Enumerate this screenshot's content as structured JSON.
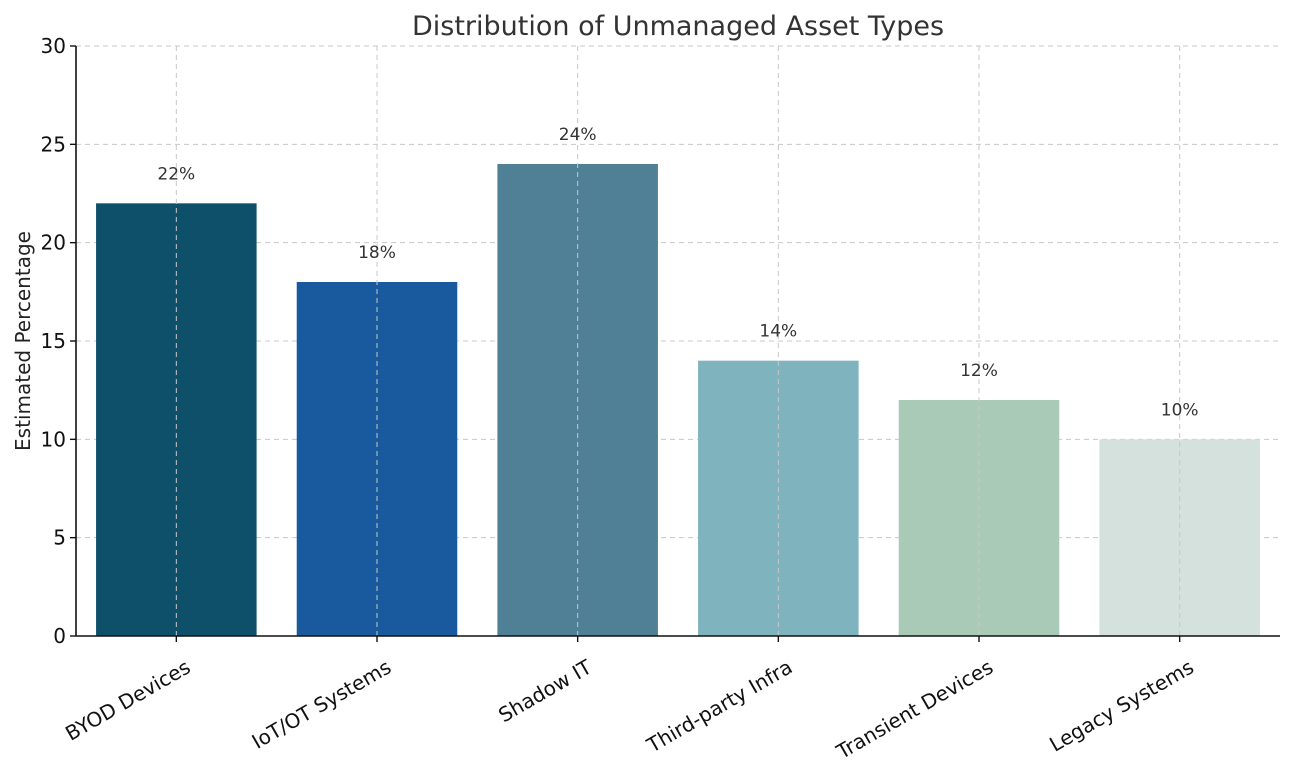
{
  "chart_data": {
    "type": "bar",
    "title": "Distribution of Unmanaged Asset Types",
    "xlabel": "",
    "ylabel": "Estimated Percentage",
    "ylim": [
      0,
      30
    ],
    "yticks": [
      0,
      5,
      10,
      15,
      20,
      25,
      30
    ],
    "grid": true,
    "categories": [
      "BYOD Devices",
      "IoT/OT Systems",
      "Shadow IT",
      "Third-party Infra",
      "Transient Devices",
      "Legacy Systems"
    ],
    "values": [
      22,
      18,
      24,
      14,
      12,
      10
    ],
    "data_labels": [
      "22%",
      "18%",
      "24%",
      "14%",
      "12%",
      "10%"
    ],
    "colors": [
      "#0e4f69",
      "#185a9d",
      "#4f8096",
      "#7fb4be",
      "#a9cab7",
      "#d4e1dc"
    ]
  }
}
